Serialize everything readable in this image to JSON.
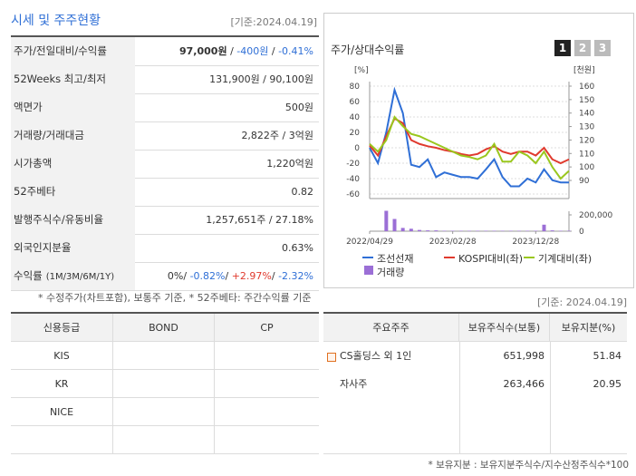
{
  "header": {
    "title": "시세 및 주주현황",
    "date": "[기준:2024.04.19]"
  },
  "quote_table": {
    "rows": [
      {
        "label": "주가/전일대비/수익률",
        "value": [
          "97,000원",
          " / ",
          "-400원",
          " / ",
          "-0.41%"
        ]
      },
      {
        "label": "52Weeks 최고/최저",
        "value": [
          "131,900원 / 90,100원"
        ]
      },
      {
        "label": "액면가",
        "value": [
          "500원"
        ]
      },
      {
        "label": "거래량/거래대금",
        "value": [
          "2,822주 / 3억원"
        ]
      },
      {
        "label": "시가총액",
        "value": [
          "1,220억원"
        ]
      },
      {
        "label": "52주베타",
        "value": [
          "0.82"
        ]
      },
      {
        "label": "발행주식수/유동비율",
        "value": [
          "1,257,651주 / 27.18%"
        ]
      },
      {
        "label": "외국인지분율",
        "value": [
          "0.63%"
        ]
      },
      {
        "label": "수익률",
        "sublabel": "(1M/3M/6M/1Y)",
        "value": [
          "0%",
          "/ ",
          "-0.82%",
          "/ ",
          "+2.97%",
          "/ ",
          "-2.32%"
        ]
      }
    ],
    "note": "* 수정주가(차트포함), 보통주 기준, * 52주베타: 주간수익률 기준"
  },
  "chart_data": {
    "type": "line",
    "title": "주가/상대수익률",
    "buttons": [
      "1",
      "2",
      "3"
    ],
    "y_label": "[%]",
    "y2_label": "[천원]",
    "categories": [
      "2022/04/29",
      null,
      null,
      null,
      null,
      null,
      null,
      null,
      null,
      null,
      "2023/02/28",
      null,
      null,
      null,
      null,
      null,
      null,
      null,
      null,
      null,
      "2023/12/28",
      null,
      null,
      null,
      null
    ],
    "ylim": [
      -60,
      80
    ],
    "yticks": [
      80,
      60,
      40,
      20,
      0,
      -20,
      -40,
      -60
    ],
    "y2lim": [
      90,
      160
    ],
    "y2ticks": [
      160,
      150,
      140,
      130,
      120,
      110,
      100,
      90
    ],
    "grid": true,
    "series": [
      {
        "name": "조선선재",
        "color": "#2f6fd6",
        "values": [
          0,
          -20,
          20,
          75,
          45,
          -22,
          -25,
          -15,
          -38,
          -32,
          -35,
          -38,
          -38,
          -40,
          -28,
          -15,
          -38,
          -50,
          -50,
          -40,
          -45,
          -28,
          -42,
          -45,
          -45
        ]
      },
      {
        "name": "KOSPI대비(좌)",
        "color": "#e03a2e",
        "values": [
          3,
          -10,
          15,
          38,
          32,
          10,
          5,
          2,
          0,
          -3,
          -5,
          -8,
          -10,
          -8,
          -2,
          2,
          -5,
          -8,
          -5,
          -5,
          -10,
          0,
          -15,
          -20,
          -15
        ]
      },
      {
        "name": "기계대비(좌)",
        "color": "#9ac71e",
        "values": [
          5,
          -5,
          10,
          40,
          28,
          18,
          15,
          10,
          5,
          0,
          -5,
          -10,
          -12,
          -15,
          -10,
          5,
          -18,
          -18,
          -5,
          -10,
          -20,
          -5,
          -25,
          -40,
          -30
        ]
      }
    ],
    "volume": {
      "name": "거래량",
      "color": "#9b6fd6",
      "ylim": [
        0,
        200000
      ],
      "yticks": [
        {
          "value": 200000,
          "label": "200,000"
        },
        0
      ],
      "values": [
        0,
        0,
        250000,
        150000,
        40000,
        30000,
        15000,
        10000,
        10000,
        5000,
        5000,
        5000,
        5000,
        5000,
        5000,
        5000,
        5000,
        5000,
        5000,
        5000,
        5000,
        80000,
        10000,
        5000,
        5000
      ]
    }
  },
  "credit_table": {
    "columns": [
      "신용등급",
      "BOND",
      "CP"
    ],
    "rows": [
      [
        "KIS"
      ],
      [
        "KR"
      ],
      [
        "NICE"
      ]
    ]
  },
  "holder_table": {
    "date": "[기준: 2024.04.19]",
    "columns": [
      "주요주주",
      "보유주식수(보통)",
      "보유지분(%)"
    ],
    "rows": [
      [
        "CS홀딩스 외 1인",
        "651,998",
        "51.84"
      ],
      [
        "자사주",
        "263,466",
        "20.95"
      ]
    ],
    "note": "* 보유지분 : 보유지분주식수/지수산정주식수*100"
  }
}
